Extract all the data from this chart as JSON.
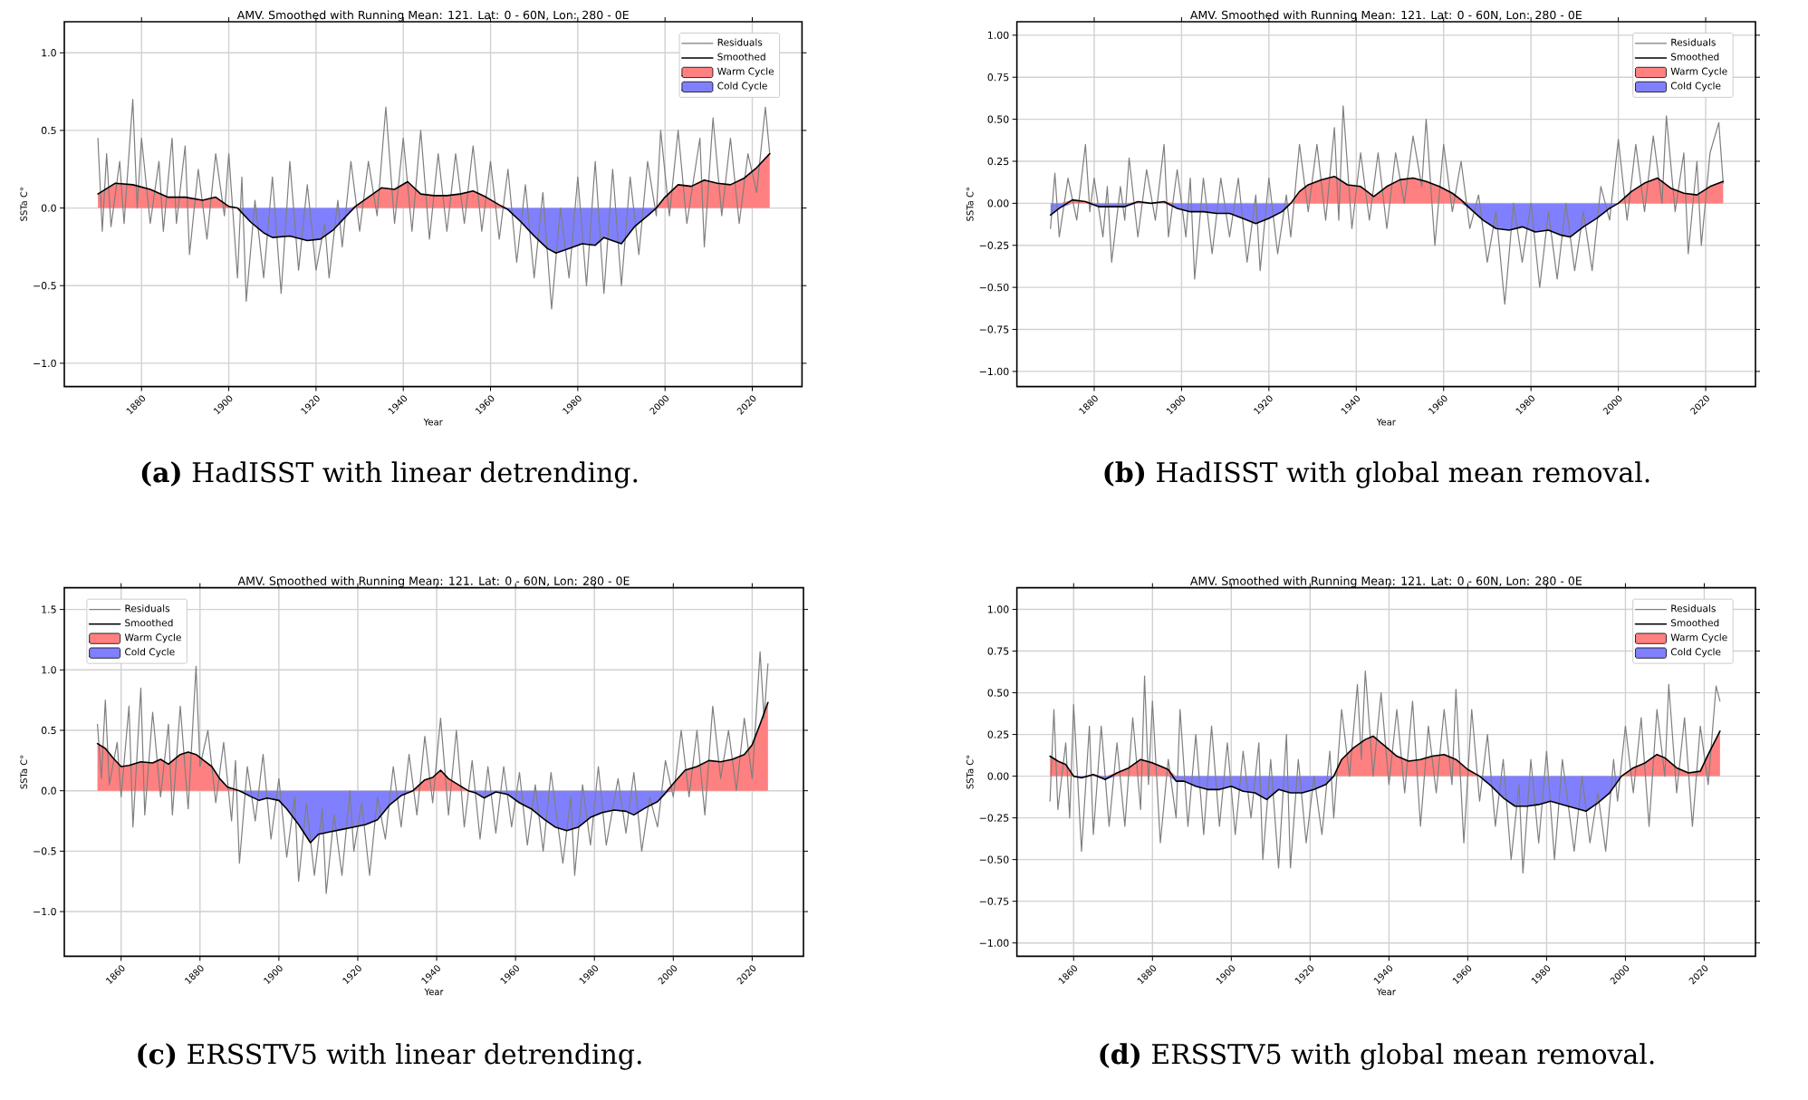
{
  "chart_data": [
    {
      "type": "line",
      "title": "AMV. Smoothed with Running Mean: 121. Lat: 0 - 60N, Lon: 280 - 0E",
      "xlabel": "Year",
      "ylabel": "SSTa C°",
      "annotations": [
        "**(a)** HadISST with linear detrending."
      ],
      "xlim": [
        1862.3,
        2031.4
      ],
      "ylim": [
        -1.15,
        1.2
      ],
      "xticks": [
        1880,
        1900,
        1920,
        1940,
        1960,
        1980,
        2000,
        2020
      ],
      "yticks": [
        {
          "value": -1.0,
          "label": "−1.0"
        },
        {
          "value": -0.5,
          "label": "−0.5"
        },
        {
          "value": 0.0,
          "label": "0.0"
        },
        {
          "value": 0.5,
          "label": "0.5"
        },
        {
          "value": 1.0,
          "label": "1.0"
        }
      ],
      "grid": true,
      "legend": "top right",
      "x": [
        1870,
        1874,
        1878,
        1882,
        1886,
        1890,
        1894,
        1897,
        1900,
        1902,
        1905,
        1908,
        1910,
        1914,
        1918,
        1921,
        1924,
        1927,
        1929,
        1932,
        1935,
        1938,
        1941,
        1944,
        1947,
        1950,
        1953,
        1956,
        1959,
        1962,
        1964,
        1967,
        1970,
        1973,
        1975,
        1978,
        1981,
        1984,
        1986,
        1990,
        1993,
        1996,
        1998,
        2000,
        2003,
        2006,
        2009,
        2012,
        2015,
        2018,
        2021,
        2024
      ],
      "series": [
        {
          "name": "Residuals",
          "color": "#7f7f7f",
          "x": [
            1870,
            1871,
            1872,
            1873,
            1875,
            1876,
            1878,
            1879,
            1880,
            1882,
            1884,
            1885,
            1887,
            1888,
            1890,
            1891,
            1893,
            1895,
            1897,
            1899,
            1900,
            1902,
            1903,
            1904,
            1906,
            1908,
            1910,
            1912,
            1914,
            1916,
            1918,
            1920,
            1922,
            1923,
            1925,
            1926,
            1928,
            1930,
            1932,
            1934,
            1936,
            1938,
            1940,
            1942,
            1944,
            1946,
            1948,
            1950,
            1952,
            1954,
            1956,
            1958,
            1960,
            1962,
            1964,
            1966,
            1968,
            1970,
            1972,
            1974,
            1976,
            1978,
            1980,
            1982,
            1984,
            1986,
            1988,
            1990,
            1992,
            1994,
            1996,
            1998,
            1999,
            2001,
            2003,
            2005,
            2008,
            2009,
            2011,
            2013,
            2015,
            2017,
            2019,
            2021,
            2023,
            2024
          ],
          "values": [
            0.45,
            -0.15,
            0.35,
            -0.12,
            0.3,
            -0.1,
            0.7,
            0.0,
            0.45,
            -0.1,
            0.3,
            -0.15,
            0.45,
            -0.1,
            0.4,
            -0.3,
            0.25,
            -0.2,
            0.35,
            -0.05,
            0.35,
            -0.45,
            0.2,
            -0.6,
            0.05,
            -0.45,
            0.2,
            -0.55,
            0.3,
            -0.4,
            0.15,
            -0.4,
            -0.1,
            -0.45,
            0.05,
            -0.25,
            0.3,
            -0.15,
            0.3,
            -0.05,
            0.65,
            -0.1,
            0.45,
            -0.15,
            0.5,
            -0.2,
            0.35,
            -0.15,
            0.35,
            -0.1,
            0.4,
            -0.15,
            0.3,
            -0.2,
            0.25,
            -0.35,
            0.15,
            -0.45,
            0.1,
            -0.65,
            0.0,
            -0.45,
            0.2,
            -0.5,
            0.3,
            -0.55,
            0.25,
            -0.5,
            0.2,
            -0.3,
            0.3,
            -0.05,
            0.5,
            -0.05,
            0.5,
            -0.1,
            0.45,
            -0.25,
            0.58,
            -0.05,
            0.45,
            -0.1,
            0.35,
            0.1,
            0.65,
            0.35
          ]
        },
        {
          "name": "Smoothed",
          "color": "#000000",
          "values": [
            0.09,
            0.16,
            0.15,
            0.12,
            0.07,
            0.07,
            0.05,
            0.07,
            0.01,
            0,
            -0.09,
            -0.16,
            -0.19,
            -0.18,
            -0.21,
            -0.2,
            -0.14,
            -0.05,
            0.01,
            0.07,
            0.13,
            0.12,
            0.17,
            0.09,
            0.08,
            0.08,
            0.09,
            0.11,
            0.07,
            0.02,
            -0.01,
            -0.09,
            -0.18,
            -0.26,
            -0.29,
            -0.26,
            -0.23,
            -0.24,
            -0.19,
            -0.23,
            -0.12,
            -0.05,
            0,
            0.07,
            0.15,
            0.14,
            0.18,
            0.16,
            0.15,
            0.19,
            0.26,
            0.35
          ]
        },
        {
          "name": "Warm Cycle",
          "type": "area",
          "color": "#ff8080",
          "values": [
            0.09,
            0.16,
            0.15,
            0.12,
            0.07,
            0.07,
            0.05,
            0.07,
            0.01,
            0,
            0,
            0,
            0,
            0,
            0,
            0,
            0,
            0,
            0.01,
            0.07,
            0.13,
            0.12,
            0.17,
            0.09,
            0.08,
            0.08,
            0.09,
            0.11,
            0.07,
            0.02,
            0,
            0,
            0,
            0,
            0,
            0,
            0,
            0,
            0,
            0,
            0,
            0,
            0,
            0.07,
            0.15,
            0.14,
            0.18,
            0.16,
            0.15,
            0.19,
            0.26,
            0.35
          ]
        },
        {
          "name": "Cold Cycle",
          "type": "area",
          "color": "#8080ff",
          "values": [
            0,
            0,
            0,
            0,
            0,
            0,
            0,
            0,
            0,
            0,
            -0.09,
            -0.16,
            -0.19,
            -0.18,
            -0.21,
            -0.2,
            -0.14,
            -0.05,
            0,
            0,
            0,
            0,
            0,
            0,
            0,
            0,
            0,
            0,
            0,
            0,
            -0.01,
            -0.09,
            -0.18,
            -0.26,
            -0.29,
            -0.26,
            -0.23,
            -0.24,
            -0.19,
            -0.23,
            -0.12,
            -0.05,
            0,
            0,
            0,
            0,
            0,
            0,
            0,
            0,
            0,
            0
          ]
        }
      ]
    },
    {
      "type": "line",
      "title": "AMV. Smoothed with Running Mean: 121. Lat: 0 - 60N, Lon: 280 - 0E",
      "xlabel": "Year",
      "ylabel": "SSTa C°",
      "annotations": [
        "**(b)** HadISST with global mean removal."
      ],
      "xlim": [
        1862.3,
        2031.4
      ],
      "ylim": [
        -1.09,
        1.08
      ],
      "xticks": [
        1880,
        1900,
        1920,
        1940,
        1960,
        1980,
        2000,
        2020
      ],
      "yticks": [
        {
          "value": -1.0,
          "label": "−1.00"
        },
        {
          "value": -0.75,
          "label": "−0.75"
        },
        {
          "value": -0.5,
          "label": "−0.50"
        },
        {
          "value": -0.25,
          "label": "−0.25"
        },
        {
          "value": 0.0,
          "label": "0.00"
        },
        {
          "value": 0.25,
          "label": "0.25"
        },
        {
          "value": 0.5,
          "label": "0.50"
        },
        {
          "value": 0.75,
          "label": "0.75"
        },
        {
          "value": 1.0,
          "label": "1.00"
        }
      ],
      "grid": true,
      "legend": "top right",
      "x": [
        1870,
        1872,
        1875,
        1878,
        1881,
        1884,
        1887,
        1890,
        1893,
        1896,
        1899,
        1902,
        1905,
        1908,
        1911,
        1914,
        1917,
        1920,
        1923,
        1925,
        1927,
        1929,
        1932,
        1935,
        1938,
        1941,
        1944,
        1947,
        1950,
        1953,
        1956,
        1959,
        1962,
        1964,
        1966,
        1969,
        1972,
        1975,
        1978,
        1981,
        1984,
        1987,
        1989,
        1992,
        1995,
        1998,
        2000,
        2003,
        2006,
        2009,
        2012,
        2015,
        2018,
        2021,
        2024
      ],
      "series": [
        {
          "name": "Residuals",
          "color": "#7f7f7f",
          "x": [
            1870,
            1871,
            1872,
            1874,
            1876,
            1878,
            1879,
            1880,
            1882,
            1883,
            1884,
            1886,
            1887,
            1888,
            1890,
            1892,
            1894,
            1896,
            1897,
            1899,
            1901,
            1902,
            1903,
            1905,
            1907,
            1909,
            1911,
            1913,
            1915,
            1917,
            1918,
            1920,
            1922,
            1924,
            1925,
            1927,
            1929,
            1931,
            1933,
            1935,
            1936,
            1937,
            1939,
            1941,
            1943,
            1945,
            1947,
            1949,
            1951,
            1953,
            1955,
            1956,
            1958,
            1960,
            1962,
            1964,
            1966,
            1968,
            1970,
            1972,
            1974,
            1976,
            1978,
            1980,
            1982,
            1984,
            1986,
            1988,
            1990,
            1992,
            1994,
            1996,
            1998,
            2000,
            2002,
            2004,
            2006,
            2008,
            2010,
            2011,
            2013,
            2015,
            2016,
            2018,
            2019,
            2021,
            2023,
            2024
          ],
          "values": [
            -0.15,
            0.18,
            -0.2,
            0.15,
            -0.1,
            0.35,
            -0.05,
            0.15,
            -0.2,
            0.1,
            -0.35,
            0.1,
            -0.1,
            0.27,
            -0.2,
            0.2,
            -0.1,
            0.35,
            -0.2,
            0.2,
            -0.2,
            0.15,
            -0.45,
            0.15,
            -0.3,
            0.15,
            -0.2,
            0.15,
            -0.35,
            0.05,
            -0.4,
            0.15,
            -0.3,
            0.05,
            -0.2,
            0.35,
            -0.05,
            0.35,
            -0.1,
            0.45,
            -0.1,
            0.58,
            -0.15,
            0.3,
            -0.1,
            0.3,
            -0.15,
            0.3,
            0.0,
            0.4,
            0.1,
            0.5,
            -0.25,
            0.35,
            -0.05,
            0.25,
            -0.15,
            0.05,
            -0.35,
            -0.05,
            -0.6,
            0.0,
            -0.35,
            0.0,
            -0.5,
            -0.05,
            -0.45,
            0.0,
            -0.4,
            -0.05,
            -0.4,
            0.1,
            -0.1,
            0.38,
            -0.1,
            0.35,
            -0.05,
            0.4,
            0.0,
            0.52,
            -0.05,
            0.3,
            -0.3,
            0.25,
            -0.25,
            0.3,
            0.48,
            0.12
          ]
        },
        {
          "name": "Smoothed",
          "color": "#000000",
          "values": [
            -0.07,
            -0.03,
            0.02,
            0.01,
            -0.02,
            -0.02,
            -0.02,
            0.01,
            0,
            0.01,
            -0.03,
            -0.05,
            -0.05,
            -0.06,
            -0.06,
            -0.09,
            -0.12,
            -0.09,
            -0.05,
            0,
            0.07,
            0.11,
            0.14,
            0.16,
            0.11,
            0.1,
            0.04,
            0.1,
            0.14,
            0.15,
            0.13,
            0.1,
            0.06,
            0.02,
            -0.03,
            -0.1,
            -0.15,
            -0.16,
            -0.14,
            -0.17,
            -0.16,
            -0.19,
            -0.2,
            -0.14,
            -0.09,
            -0.03,
            0,
            0.07,
            0.12,
            0.15,
            0.09,
            0.06,
            0.05,
            0.1,
            0.13
          ]
        },
        {
          "name": "Warm Cycle",
          "type": "area",
          "color": "#ff8080",
          "values": [
            0,
            0,
            0.02,
            0.01,
            0,
            0,
            0,
            0.01,
            0,
            0.01,
            0,
            0,
            0,
            0,
            0,
            0,
            0,
            0,
            0,
            0,
            0.07,
            0.11,
            0.14,
            0.16,
            0.11,
            0.1,
            0.04,
            0.1,
            0.14,
            0.15,
            0.13,
            0.1,
            0.06,
            0.02,
            0,
            0,
            0,
            0,
            0,
            0,
            0,
            0,
            0,
            0,
            0,
            0,
            0,
            0.07,
            0.12,
            0.15,
            0.09,
            0.06,
            0.05,
            0.1,
            0.13
          ]
        },
        {
          "name": "Cold Cycle",
          "type": "area",
          "color": "#8080ff",
          "values": [
            -0.07,
            -0.03,
            0,
            0,
            -0.02,
            -0.02,
            -0.02,
            0,
            0,
            0,
            -0.03,
            -0.05,
            -0.05,
            -0.06,
            -0.06,
            -0.09,
            -0.12,
            -0.09,
            -0.05,
            0,
            0,
            0,
            0,
            0,
            0,
            0,
            0,
            0,
            0,
            0,
            0,
            0,
            0,
            0,
            -0.03,
            -0.1,
            -0.15,
            -0.16,
            -0.14,
            -0.17,
            -0.16,
            -0.19,
            -0.2,
            -0.14,
            -0.09,
            -0.03,
            0,
            0,
            0,
            0,
            0,
            0,
            0,
            0,
            0
          ]
        }
      ]
    },
    {
      "type": "line",
      "title": "AMV. Smoothed with Running Mean: 121. Lat: 0 - 60N, Lon: 280 - 0E",
      "xlabel": "Year",
      "ylabel": "SSTa C°",
      "annotations": [
        "**(c)** ERSSTV5 with linear detrending."
      ],
      "xlim": [
        1845.6,
        2033.0
      ],
      "ylim": [
        -1.37,
        1.68
      ],
      "xticks": [
        1860,
        1880,
        1900,
        1920,
        1940,
        1960,
        1980,
        2000,
        2020
      ],
      "yticks": [
        {
          "value": -1.0,
          "label": "−1.0"
        },
        {
          "value": -0.5,
          "label": "−0.5"
        },
        {
          "value": 0.0,
          "label": "0.0"
        },
        {
          "value": 0.5,
          "label": "0.5"
        },
        {
          "value": 1.0,
          "label": "1.0"
        },
        {
          "value": 1.5,
          "label": "1.5"
        }
      ],
      "grid": true,
      "legend": "top left",
      "x": [
        1854,
        1856,
        1858,
        1860,
        1862,
        1865,
        1868,
        1870,
        1872,
        1875,
        1877,
        1879,
        1881,
        1883,
        1885,
        1887,
        1890,
        1893,
        1895,
        1897,
        1900,
        1902,
        1905,
        1908,
        1910,
        1913,
        1916,
        1919,
        1922,
        1925,
        1928,
        1931,
        1934,
        1937,
        1939,
        1941,
        1943,
        1946,
        1948,
        1950,
        1952,
        1955,
        1958,
        1961,
        1964,
        1967,
        1970,
        1973,
        1976,
        1979,
        1982,
        1985,
        1988,
        1990,
        1993,
        1996,
        1998,
        2000,
        2003,
        2006,
        2009,
        2012,
        2015,
        2018,
        2020,
        2022,
        2024
      ],
      "series": [
        {
          "name": "Residuals",
          "color": "#7f7f7f",
          "x": [
            1854,
            1855,
            1856,
            1857,
            1859,
            1860,
            1862,
            1863,
            1865,
            1866,
            1868,
            1870,
            1872,
            1873,
            1875,
            1877,
            1879,
            1880,
            1882,
            1884,
            1886,
            1888,
            1889,
            1890,
            1892,
            1894,
            1896,
            1898,
            1900,
            1902,
            1904,
            1905,
            1907,
            1909,
            1911,
            1912,
            1914,
            1916,
            1918,
            1919,
            1921,
            1923,
            1925,
            1927,
            1929,
            1931,
            1933,
            1935,
            1937,
            1939,
            1941,
            1943,
            1945,
            1947,
            1949,
            1951,
            1953,
            1955,
            1957,
            1959,
            1961,
            1963,
            1965,
            1967,
            1969,
            1972,
            1974,
            1975,
            1977,
            1979,
            1981,
            1983,
            1986,
            1988,
            1990,
            1992,
            1994,
            1996,
            1998,
            2000,
            2002,
            2004,
            2006,
            2008,
            2010,
            2012,
            2014,
            2016,
            2018,
            2020,
            2022,
            2023,
            2024
          ],
          "values": [
            0.55,
            0.1,
            0.75,
            0.05,
            0.4,
            -0.05,
            0.7,
            -0.3,
            0.85,
            -0.2,
            0.65,
            -0.05,
            0.55,
            -0.2,
            0.7,
            -0.15,
            1.03,
            0.2,
            0.5,
            -0.1,
            0.4,
            -0.25,
            0.25,
            -0.6,
            0.2,
            -0.25,
            0.3,
            -0.4,
            0.1,
            -0.55,
            -0.05,
            -0.75,
            -0.1,
            -0.7,
            -0.15,
            -0.85,
            -0.2,
            -0.7,
            0.0,
            -0.5,
            -0.1,
            -0.7,
            -0.05,
            -0.4,
            0.2,
            -0.3,
            0.3,
            -0.2,
            0.45,
            -0.1,
            0.6,
            -0.2,
            0.5,
            -0.3,
            0.25,
            -0.4,
            0.2,
            -0.35,
            0.2,
            -0.3,
            0.15,
            -0.45,
            0.05,
            -0.5,
            0.15,
            -0.6,
            -0.05,
            -0.7,
            0.05,
            -0.45,
            0.2,
            -0.45,
            0.1,
            -0.35,
            0.15,
            -0.5,
            -0.05,
            -0.3,
            0.25,
            -0.05,
            0.5,
            -0.05,
            0.5,
            -0.2,
            0.7,
            0.1,
            0.5,
            0.0,
            0.6,
            0.1,
            1.15,
            0.6,
            1.05
          ]
        },
        {
          "name": "Smoothed",
          "color": "#000000",
          "values": [
            0.39,
            0.35,
            0.27,
            0.2,
            0.21,
            0.24,
            0.23,
            0.26,
            0.22,
            0.3,
            0.32,
            0.3,
            0.25,
            0.2,
            0.1,
            0.03,
            0,
            -0.05,
            -0.08,
            -0.06,
            -0.08,
            -0.15,
            -0.28,
            -0.43,
            -0.36,
            -0.34,
            -0.32,
            -0.3,
            -0.28,
            -0.24,
            -0.12,
            -0.04,
            0,
            0.09,
            0.11,
            0.17,
            0.1,
            0.04,
            0,
            -0.02,
            -0.06,
            -0.01,
            -0.03,
            -0.1,
            -0.15,
            -0.23,
            -0.3,
            -0.33,
            -0.3,
            -0.22,
            -0.18,
            -0.16,
            -0.17,
            -0.2,
            -0.14,
            -0.09,
            -0.02,
            0.06,
            0.17,
            0.2,
            0.25,
            0.24,
            0.26,
            0.3,
            0.38,
            0.55,
            0.73
          ]
        },
        {
          "name": "Warm Cycle",
          "type": "area",
          "color": "#ff8080",
          "values": [
            0.39,
            0.35,
            0.27,
            0.2,
            0.21,
            0.24,
            0.23,
            0.26,
            0.22,
            0.3,
            0.32,
            0.3,
            0.25,
            0.2,
            0.1,
            0.03,
            0,
            0,
            0,
            0,
            0,
            0,
            0,
            0,
            0,
            0,
            0,
            0,
            0,
            0,
            0,
            0,
            0,
            0.09,
            0.11,
            0.17,
            0.1,
            0.04,
            0,
            0,
            0,
            0,
            0,
            0,
            0,
            0,
            0,
            0,
            0,
            0,
            0,
            0,
            0,
            0,
            0,
            0,
            0,
            0.06,
            0.17,
            0.2,
            0.25,
            0.24,
            0.26,
            0.3,
            0.38,
            0.55,
            0.73
          ]
        },
        {
          "name": "Cold Cycle",
          "type": "area",
          "color": "#8080ff",
          "values": [
            0,
            0,
            0,
            0,
            0,
            0,
            0,
            0,
            0,
            0,
            0,
            0,
            0,
            0,
            0,
            0,
            0,
            -0.05,
            -0.08,
            -0.06,
            -0.08,
            -0.15,
            -0.28,
            -0.43,
            -0.36,
            -0.34,
            -0.32,
            -0.3,
            -0.28,
            -0.24,
            -0.12,
            -0.04,
            0,
            0,
            0,
            0,
            0,
            0,
            0,
            -0.02,
            -0.06,
            -0.01,
            -0.03,
            -0.1,
            -0.15,
            -0.23,
            -0.3,
            -0.33,
            -0.3,
            -0.22,
            -0.18,
            -0.16,
            -0.17,
            -0.2,
            -0.14,
            -0.09,
            -0.02,
            0,
            0,
            0,
            0,
            0,
            0,
            0,
            0,
            0,
            0
          ]
        }
      ]
    },
    {
      "type": "line",
      "title": "AMV. Smoothed with Running Mean: 121. Lat: 0 - 60N, Lon: 280 - 0E",
      "xlabel": "Year",
      "ylabel": "SSTa C°",
      "annotations": [
        "**(d)** ERSSTV5 with global mean removal."
      ],
      "xlim": [
        1845.6,
        2033.0
      ],
      "ylim": [
        -1.08,
        1.13
      ],
      "xticks": [
        1860,
        1880,
        1900,
        1920,
        1940,
        1960,
        1980,
        2000,
        2020
      ],
      "yticks": [
        {
          "value": -1.0,
          "label": "−1.00"
        },
        {
          "value": -0.75,
          "label": "−0.75"
        },
        {
          "value": -0.5,
          "label": "−0.50"
        },
        {
          "value": -0.25,
          "label": "−0.25"
        },
        {
          "value": 0.0,
          "label": "0.00"
        },
        {
          "value": 0.25,
          "label": "0.25"
        },
        {
          "value": 0.5,
          "label": "0.50"
        },
        {
          "value": 0.75,
          "label": "0.75"
        },
        {
          "value": 1.0,
          "label": "1.00"
        }
      ],
      "grid": true,
      "legend": "top right",
      "x": [
        1854,
        1856,
        1858,
        1860,
        1862,
        1865,
        1868,
        1871,
        1874,
        1877,
        1880,
        1882,
        1884,
        1886,
        1888,
        1891,
        1894,
        1897,
        1900,
        1903,
        1906,
        1909,
        1912,
        1915,
        1918,
        1921,
        1924,
        1926,
        1928,
        1931,
        1934,
        1936,
        1939,
        1942,
        1945,
        1948,
        1951,
        1954,
        1957,
        1960,
        1963,
        1966,
        1969,
        1972,
        1975,
        1978,
        1981,
        1984,
        1987,
        1990,
        1993,
        1996,
        1999,
        2002,
        2005,
        2008,
        2010,
        2013,
        2016,
        2019,
        2021,
        2024
      ],
      "series": [
        {
          "name": "Residuals",
          "color": "#7f7f7f",
          "x": [
            1854,
            1855,
            1856,
            1858,
            1859,
            1860,
            1862,
            1864,
            1865,
            1867,
            1869,
            1871,
            1873,
            1875,
            1877,
            1878,
            1879,
            1880,
            1882,
            1884,
            1886,
            1887,
            1889,
            1891,
            1893,
            1895,
            1897,
            1899,
            1901,
            1903,
            1905,
            1907,
            1908,
            1910,
            1912,
            1914,
            1915,
            1917,
            1919,
            1921,
            1923,
            1925,
            1926,
            1928,
            1930,
            1932,
            1933,
            1934,
            1936,
            1938,
            1940,
            1942,
            1944,
            1946,
            1948,
            1950,
            1952,
            1954,
            1956,
            1957,
            1959,
            1961,
            1963,
            1965,
            1967,
            1969,
            1971,
            1973,
            1974,
            1976,
            1978,
            1980,
            1982,
            1984,
            1987,
            1989,
            1991,
            1993,
            1995,
            1997,
            1998,
            2000,
            2002,
            2004,
            2006,
            2008,
            2010,
            2011,
            2013,
            2015,
            2017,
            2019,
            2021,
            2023,
            2024
          ],
          "values": [
            -0.15,
            0.4,
            -0.2,
            0.2,
            -0.25,
            0.43,
            -0.45,
            0.3,
            -0.35,
            0.3,
            -0.3,
            0.2,
            -0.3,
            0.35,
            -0.2,
            0.6,
            -0.05,
            0.45,
            -0.4,
            0.1,
            -0.25,
            0.4,
            -0.3,
            0.25,
            -0.35,
            0.3,
            -0.3,
            0.2,
            -0.35,
            0.15,
            -0.25,
            0.2,
            -0.5,
            0.1,
            -0.55,
            0.25,
            -0.55,
            0.1,
            -0.4,
            0.0,
            -0.35,
            0.15,
            -0.25,
            0.4,
            0.0,
            0.55,
            0.1,
            0.63,
            0.0,
            0.5,
            -0.05,
            0.4,
            -0.1,
            0.45,
            -0.3,
            0.3,
            -0.1,
            0.4,
            -0.05,
            0.52,
            -0.4,
            0.4,
            -0.15,
            0.25,
            -0.3,
            0.1,
            -0.5,
            -0.05,
            -0.58,
            0.1,
            -0.4,
            0.15,
            -0.5,
            0.1,
            -0.45,
            0.0,
            -0.4,
            -0.1,
            -0.45,
            0.1,
            -0.15,
            0.3,
            -0.1,
            0.35,
            -0.3,
            0.4,
            0.0,
            0.55,
            -0.1,
            0.35,
            -0.3,
            0.3,
            -0.05,
            0.54,
            0.45
          ]
        },
        {
          "name": "Smoothed",
          "color": "#000000",
          "values": [
            0.12,
            0.09,
            0.07,
            0,
            -0.01,
            0.01,
            -0.02,
            0.02,
            0.05,
            0.1,
            0.08,
            0.06,
            0.04,
            -0.03,
            -0.03,
            -0.06,
            -0.08,
            -0.08,
            -0.06,
            -0.09,
            -0.1,
            -0.14,
            -0.08,
            -0.1,
            -0.1,
            -0.08,
            -0.05,
            0,
            0.1,
            0.17,
            0.22,
            0.24,
            0.18,
            0.12,
            0.09,
            0.1,
            0.12,
            0.13,
            0.1,
            0.04,
            0,
            -0.06,
            -0.13,
            -0.18,
            -0.18,
            -0.17,
            -0.15,
            -0.17,
            -0.19,
            -0.21,
            -0.16,
            -0.1,
            0,
            0.05,
            0.08,
            0.13,
            0.11,
            0.05,
            0.02,
            0.03,
            0.13,
            0.27
          ]
        },
        {
          "name": "Warm Cycle",
          "type": "area",
          "color": "#ff8080",
          "values": [
            0.12,
            0.09,
            0.07,
            0,
            0,
            0.01,
            0,
            0.02,
            0.05,
            0.1,
            0.08,
            0.06,
            0.04,
            0,
            0,
            0,
            0,
            0,
            0,
            0,
            0,
            0,
            0,
            0,
            0,
            0,
            0,
            0,
            0.1,
            0.17,
            0.22,
            0.24,
            0.18,
            0.12,
            0.09,
            0.1,
            0.12,
            0.13,
            0.1,
            0.04,
            0,
            0,
            0,
            0,
            0,
            0,
            0,
            0,
            0,
            0,
            0,
            0,
            0,
            0.05,
            0.08,
            0.13,
            0.11,
            0.05,
            0.02,
            0.03,
            0.13,
            0.27
          ]
        },
        {
          "name": "Cold Cycle",
          "type": "area",
          "color": "#8080ff",
          "values": [
            0,
            0,
            0,
            0,
            -0.01,
            0,
            -0.02,
            0,
            0,
            0,
            0,
            0,
            0,
            -0.03,
            -0.03,
            -0.06,
            -0.08,
            -0.08,
            -0.06,
            -0.09,
            -0.1,
            -0.14,
            -0.08,
            -0.1,
            -0.1,
            -0.08,
            -0.05,
            0,
            0,
            0,
            0,
            0,
            0,
            0,
            0,
            0,
            0,
            0,
            0,
            0,
            0,
            -0.06,
            -0.13,
            -0.18,
            -0.18,
            -0.17,
            -0.15,
            -0.17,
            -0.19,
            -0.21,
            -0.16,
            -0.1,
            0,
            0,
            0,
            0,
            0,
            0,
            0,
            0,
            0,
            0
          ]
        }
      ]
    }
  ]
}
